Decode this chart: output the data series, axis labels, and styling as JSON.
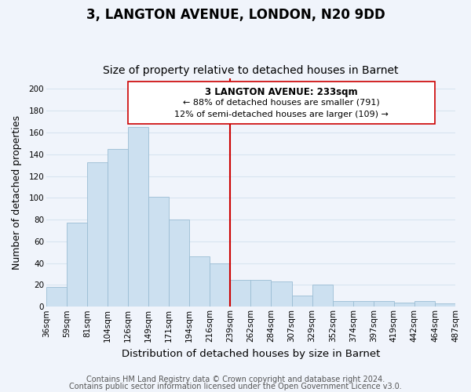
{
  "title": "3, LANGTON AVENUE, LONDON, N20 9DD",
  "subtitle": "Size of property relative to detached houses in Barnet",
  "xlabel": "Distribution of detached houses by size in Barnet",
  "ylabel": "Number of detached properties",
  "categories": [
    "36sqm",
    "59sqm",
    "81sqm",
    "104sqm",
    "126sqm",
    "149sqm",
    "171sqm",
    "194sqm",
    "216sqm",
    "239sqm",
    "262sqm",
    "284sqm",
    "307sqm",
    "329sqm",
    "352sqm",
    "374sqm",
    "397sqm",
    "419sqm",
    "442sqm",
    "464sqm",
    "487sqm"
  ],
  "values": [
    18,
    77,
    133,
    145,
    165,
    101,
    80,
    46,
    40,
    25,
    25,
    23,
    10,
    20,
    5,
    5,
    5,
    4,
    5,
    3
  ],
  "bar_color": "#cce0f0",
  "bar_edge_color": "#9bbdd4",
  "bar_width": 1.0,
  "ylim": [
    0,
    210
  ],
  "yticks": [
    0,
    20,
    40,
    60,
    80,
    100,
    120,
    140,
    160,
    180,
    200
  ],
  "vline_color": "#cc0000",
  "annotation_title": "3 LANGTON AVENUE: 233sqm",
  "annotation_line1": "← 88% of detached houses are smaller (791)",
  "annotation_line2": "12% of semi-detached houses are larger (109) →",
  "annotation_box_color": "#ffffff",
  "annotation_box_edge_color": "#cc0000",
  "footer_line1": "Contains HM Land Registry data © Crown copyright and database right 2024.",
  "footer_line2": "Contains public sector information licensed under the Open Government Licence v3.0.",
  "background_color": "#f0f4fb",
  "grid_color": "#d8e4f0",
  "title_fontsize": 12,
  "subtitle_fontsize": 10,
  "xlabel_fontsize": 9.5,
  "ylabel_fontsize": 9,
  "tick_fontsize": 7.5,
  "footer_fontsize": 7,
  "annotation_title_fontsize": 8.5,
  "annotation_text_fontsize": 8
}
